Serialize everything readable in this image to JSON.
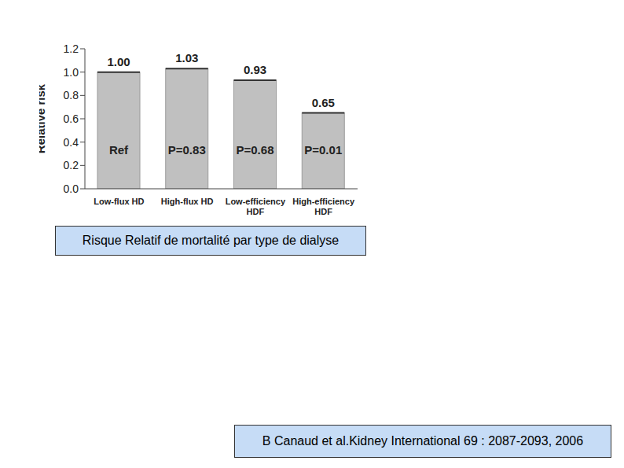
{
  "chart_data": {
    "type": "bar",
    "title": "Risque Relatif de mortalité par type de dialyse",
    "source": "B Canaud et al.Kidney International 69 : 2087-2093, 2006",
    "y_label": "Relative risk",
    "categories": [
      "Low-flux HD",
      "High-flux HD",
      "Low-efficiency HDF",
      "High-efficiency HDF"
    ],
    "values": [
      1,
      1.03,
      0.93,
      0.65
    ],
    "value_labels": [
      "1.00",
      "1.03",
      "0.93",
      "0.65"
    ],
    "annotations": [
      "Ref",
      "P=0.83",
      "P=0.68",
      "P=0.01"
    ],
    "color": "#c0c0c0",
    "ylim": [
      0,
      1.2
    ],
    "yticks": [
      {
        "value": 0,
        "label": "0.0"
      },
      0.2,
      0.4,
      0.6,
      0.8,
      {
        "value": 1,
        "label": "1.0"
      },
      1.2
    ],
    "grid": false,
    "data_labels": true
  }
}
